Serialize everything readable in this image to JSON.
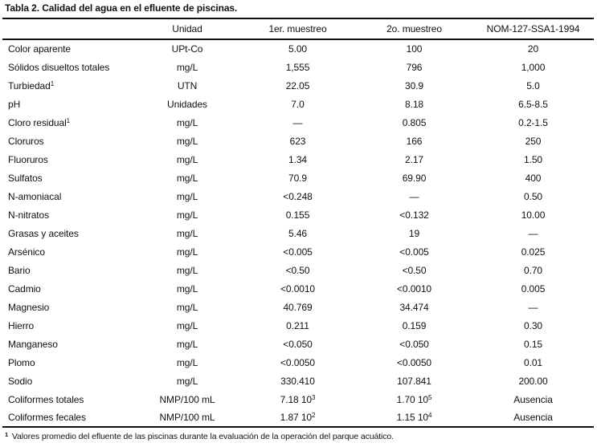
{
  "title": "Tabla 2. Calidad del agua en el efluente de piscinas.",
  "table": {
    "headers": [
      "",
      "Unidad",
      "1er. muestreo",
      "2o. muestreo",
      "NOM-127-SSA1-1994"
    ],
    "rows": [
      [
        "Color aparente",
        "UPt-Co",
        "5.00",
        "100",
        "20"
      ],
      [
        "Sólidos disueltos totales",
        "mg/L",
        "1,555",
        "796",
        "1,000"
      ],
      [
        "Turbiedad^1",
        "UTN",
        "22.05",
        "30.9",
        "5.0"
      ],
      [
        "pH",
        "Unidades",
        "7.0",
        "8.18",
        "6.5-8.5"
      ],
      [
        "Cloro residual^1",
        "mg/L",
        "—",
        "0.805",
        "0.2-1.5"
      ],
      [
        "Cloruros",
        "mg/L",
        "623",
        "166",
        "250"
      ],
      [
        "Fluoruros",
        "mg/L",
        "1.34",
        "2.17",
        "1.50"
      ],
      [
        "Sulfatos",
        "mg/L",
        "70.9",
        "69.90",
        "400"
      ],
      [
        "N-amoniacal",
        "mg/L",
        "<0.248",
        "—",
        "0.50"
      ],
      [
        "N-nitratos",
        "mg/L",
        "0.155",
        "<0.132",
        "10.00"
      ],
      [
        "Grasas y aceites",
        "mg/L",
        "5.46",
        "19",
        "—"
      ],
      [
        "Arsénico",
        "mg/L",
        "<0.005",
        "<0.005",
        "0.025"
      ],
      [
        "Bario",
        "mg/L",
        "<0.50",
        "<0.50",
        "0.70"
      ],
      [
        "Cadmio",
        "mg/L",
        "<0.0010",
        "<0.0010",
        "0.005"
      ],
      [
        "Magnesio",
        "mg/L",
        "40.769",
        "34.474",
        "—"
      ],
      [
        "Hierro",
        "mg/L",
        "0.211",
        "0.159",
        "0.30"
      ],
      [
        "Manganeso",
        "mg/L",
        "<0.050",
        "<0.050",
        "0.15"
      ],
      [
        "Plomo",
        "mg/L",
        "<0.0050",
        "<0.0050",
        "0.01"
      ],
      [
        "Sodio",
        "mg/L",
        "330.410",
        "107.841",
        "200.00"
      ],
      [
        "Coliformes totales",
        "NMP/100 mL",
        "7.18 10^3",
        "1.70 10^5",
        "Ausencia"
      ],
      [
        "Coliformes fecales",
        "NMP/100 mL",
        "1.87 10^2",
        "1.15 10^4",
        "Ausencia"
      ]
    ]
  },
  "footnote": "^1 Valores promedio del efluente de las piscinas durante la evaluación de la operación del parque acuático.",
  "colors": {
    "text": "#111111",
    "background": "#ffffff",
    "rule": "#111111"
  }
}
